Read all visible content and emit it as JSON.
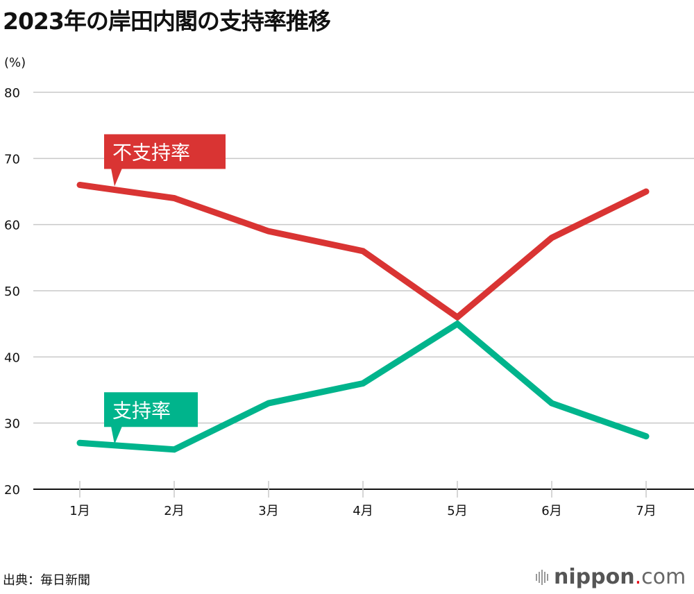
{
  "title": "2023年の岸田内閣の支持率推移",
  "unit": "(%)",
  "source": "出典：毎日新聞",
  "logo": {
    "name": "nippon",
    "dot": ".",
    "tld": "com"
  },
  "chart_data": {
    "type": "line",
    "title": "2023年の岸田内閣の支持率推移",
    "ylabel": "(%)",
    "categories": [
      "1月",
      "2月",
      "3月",
      "4月",
      "5月",
      "6月",
      "7月"
    ],
    "ylim": [
      20,
      80
    ],
    "yticks": [
      20,
      30,
      40,
      50,
      60,
      70,
      80
    ],
    "grid": true,
    "series": [
      {
        "name": "不支持率",
        "color": "#d93433",
        "values": [
          66,
          64,
          59,
          56,
          46,
          58,
          65
        ]
      },
      {
        "name": "支持率",
        "color": "#00b48c",
        "values": [
          27,
          26,
          33,
          36,
          45,
          33,
          28
        ]
      }
    ]
  }
}
